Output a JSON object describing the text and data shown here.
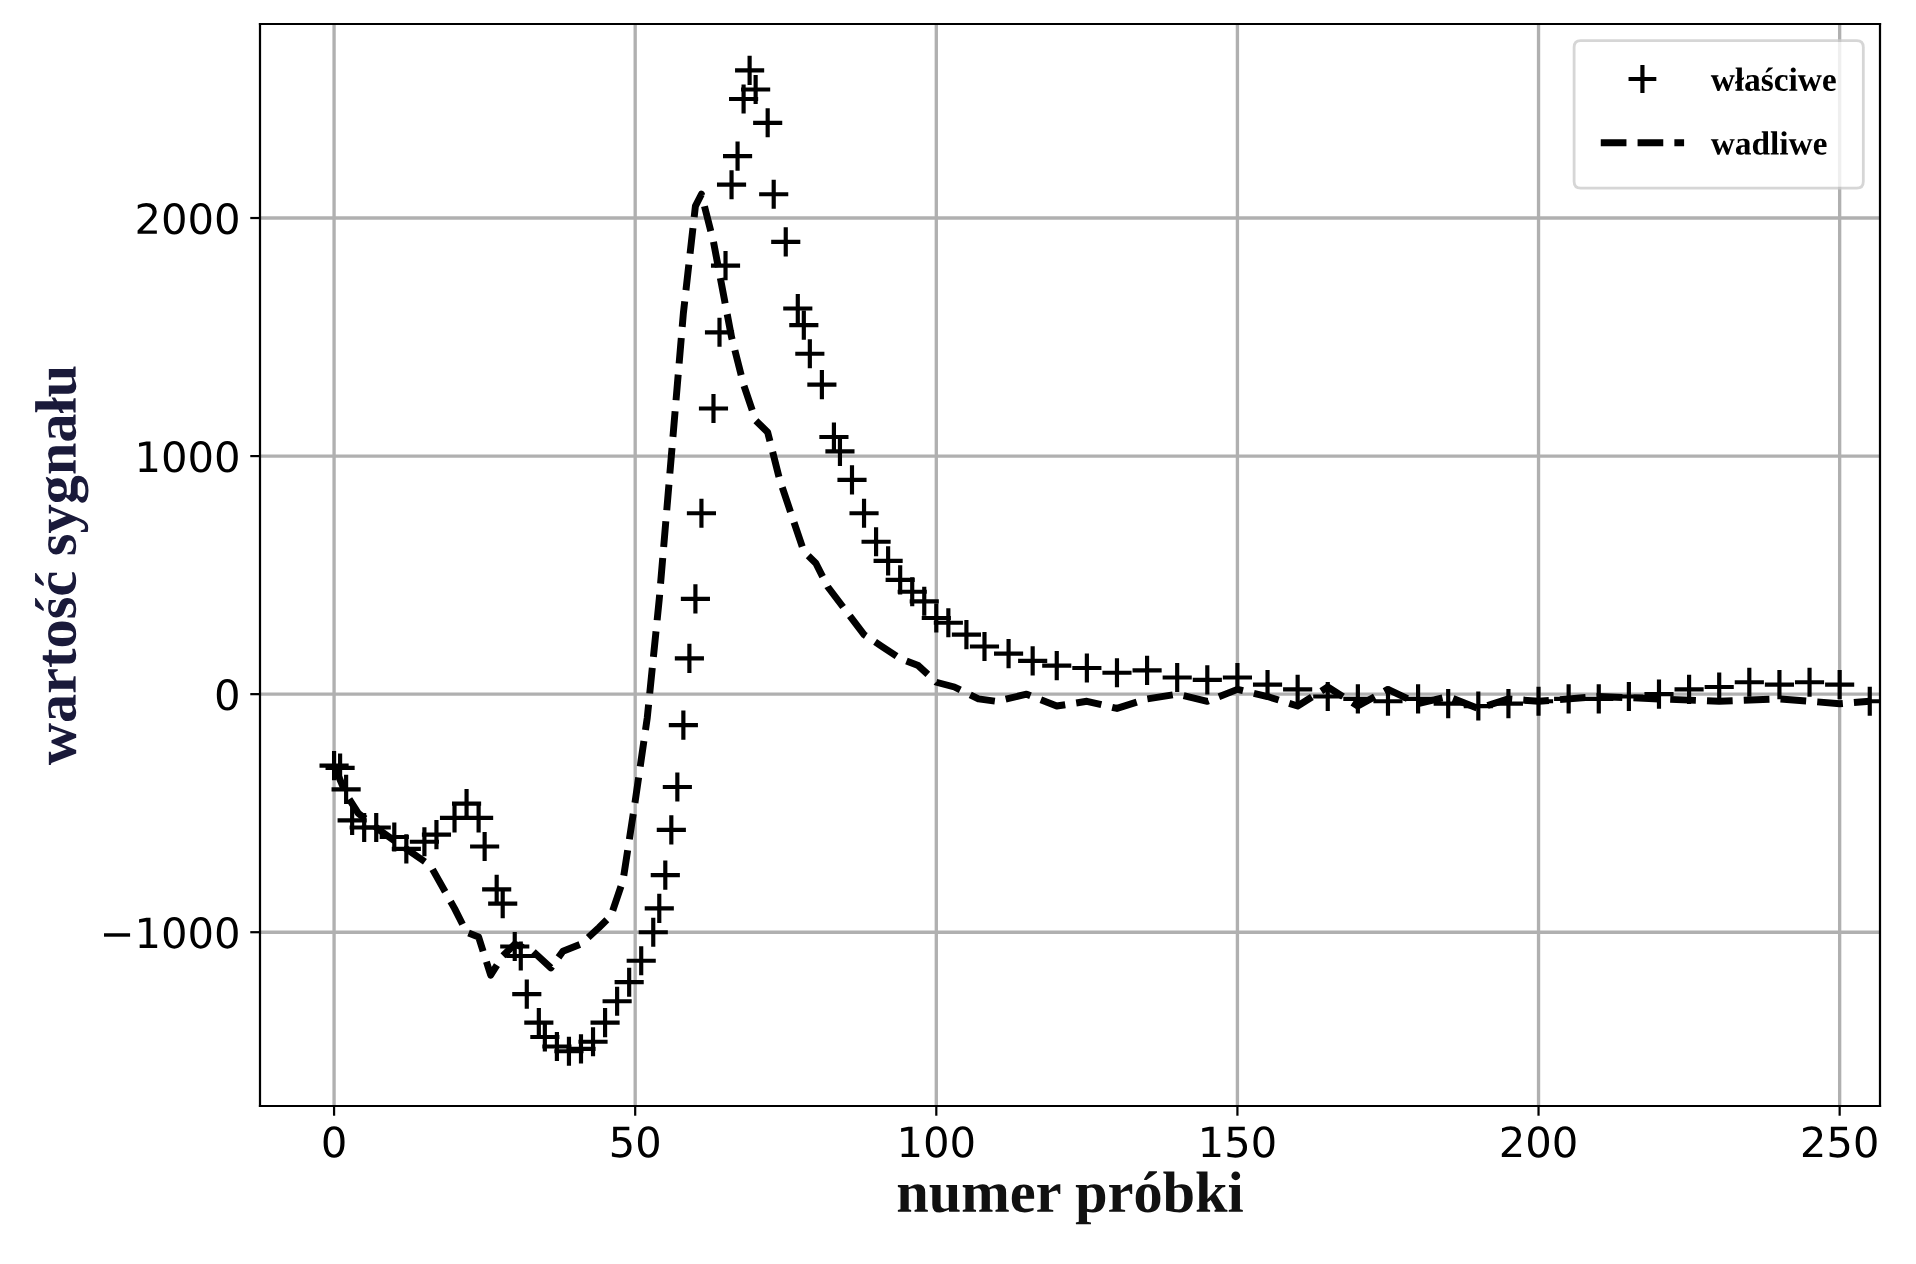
{
  "chart_data": {
    "type": "scatter",
    "xlabel": "numer próbki",
    "ylabel": "wartość sygnału",
    "xlim": [
      -12.3,
      256.7
    ],
    "ylim": [
      -1730,
      2815
    ],
    "xticks": [
      0,
      50,
      100,
      150,
      200,
      250
    ],
    "yticks": [
      -1000,
      0,
      1000,
      2000
    ],
    "grid": true,
    "legend": "top right",
    "series": [
      {
        "name": "właściwe",
        "marker": "cross",
        "color": "#000000",
        "x": [
          0,
          1,
          2,
          3,
          5,
          7,
          10,
          12,
          15,
          17,
          20,
          22,
          24,
          25,
          27,
          28,
          30,
          31,
          32,
          34,
          35,
          37,
          39,
          41,
          43,
          45,
          47,
          49,
          51,
          53,
          54,
          55,
          56,
          57,
          58,
          59,
          60,
          61,
          63,
          64,
          65,
          66,
          67,
          68,
          69,
          70,
          72,
          73,
          75,
          77,
          78,
          79,
          81,
          83,
          84,
          86,
          88,
          90,
          92,
          94,
          96,
          98,
          100,
          102,
          105,
          108,
          112,
          116,
          120,
          125,
          130,
          135,
          140,
          145,
          150,
          155,
          160,
          165,
          170,
          175,
          180,
          185,
          190,
          195,
          200,
          205,
          210,
          215,
          220,
          225,
          230,
          235,
          240,
          245,
          250,
          255
        ],
        "values": [
          -300,
          -310,
          -400,
          -530,
          -560,
          -560,
          -600,
          -650,
          -620,
          -590,
          -520,
          -460,
          -520,
          -640,
          -820,
          -880,
          -1060,
          -1100,
          -1260,
          -1380,
          -1440,
          -1480,
          -1500,
          -1490,
          -1460,
          -1380,
          -1290,
          -1210,
          -1120,
          -1000,
          -900,
          -760,
          -570,
          -390,
          -130,
          150,
          400,
          760,
          1200,
          1520,
          1800,
          2140,
          2260,
          2500,
          2620,
          2540,
          2400,
          2100,
          1900,
          1620,
          1550,
          1430,
          1300,
          1080,
          1020,
          900,
          760,
          640,
          560,
          480,
          430,
          390,
          320,
          300,
          250,
          200,
          170,
          140,
          120,
          110,
          90,
          100,
          70,
          60,
          70,
          40,
          20,
          -10,
          -20,
          -30,
          -20,
          -40,
          -50,
          -40,
          -30,
          -20,
          -20,
          -10,
          0,
          20,
          30,
          50,
          40,
          50,
          40,
          -30
        ]
      },
      {
        "name": "wadliwe",
        "type": "line",
        "line_style": "dashed",
        "marker": "none",
        "color": "#000000",
        "x": [
          0,
          2,
          4,
          8,
          12,
          16,
          20,
          22,
          24,
          26,
          28,
          30,
          33,
          36,
          38,
          41,
          44,
          46,
          48,
          50,
          52,
          54,
          56,
          58,
          60,
          61,
          63,
          66,
          68,
          70,
          72,
          74,
          76,
          78,
          80,
          82,
          85,
          88,
          91,
          94,
          97,
          100,
          103,
          107,
          110,
          115,
          120,
          125,
          130,
          135,
          140,
          145,
          150,
          155,
          160,
          165,
          170,
          175,
          180,
          185,
          190,
          195,
          200,
          210,
          220,
          230,
          240,
          250,
          255
        ],
        "values": [
          -300,
          -420,
          -500,
          -580,
          -650,
          -720,
          -900,
          -1000,
          -1020,
          -1180,
          -1100,
          -1050,
          -1080,
          -1150,
          -1080,
          -1050,
          -980,
          -930,
          -780,
          -450,
          -100,
          400,
          1000,
          1600,
          2050,
          2100,
          1900,
          1500,
          1300,
          1150,
          1100,
          900,
          750,
          600,
          550,
          450,
          350,
          250,
          200,
          150,
          120,
          50,
          30,
          -20,
          -30,
          0,
          -50,
          -30,
          -60,
          -20,
          0,
          -30,
          20,
          -10,
          -50,
          30,
          -50,
          20,
          -40,
          -10,
          -60,
          -20,
          -30,
          -10,
          -20,
          -30,
          -20,
          -40,
          -30
        ]
      }
    ]
  }
}
